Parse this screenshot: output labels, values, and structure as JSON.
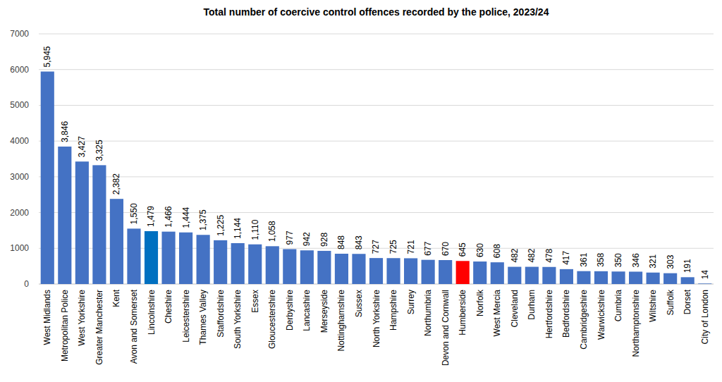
{
  "chart_data": {
    "type": "bar",
    "title": "Total number of coercive control offences recorded by the police, 2023/24",
    "categories": [
      "West Midlands",
      "Metropolitan Police",
      "West Yorkshire",
      "Greater Manchester",
      "Kent",
      "Avon and Somerset",
      "Lincolnshire",
      "Cheshire",
      "Leicestershire",
      "Thames Valley",
      "Staffordshire",
      "South Yorkshire",
      "Essex",
      "Gloucestershire",
      "Derbyshire",
      "Lancashire",
      "Merseyside",
      "Nottinghamshire",
      "Sussex",
      "North Yorkshire",
      "Hampshire",
      "Surrey",
      "Northumbria",
      "Devon and Cornwall",
      "Humberside",
      "Norfolk",
      "West Mercia",
      "Cleveland",
      "Durham",
      "Hertfordshire",
      "Bedfordshire",
      "Cambridgeshire",
      "Warwickshire",
      "Cumbria",
      "Northamptonshire",
      "Wiltshire",
      "Suffolk",
      "Dorset",
      "City of London"
    ],
    "values": [
      5945,
      3846,
      3427,
      3325,
      2382,
      1550,
      1479,
      1466,
      1444,
      1375,
      1225,
      1144,
      1110,
      1058,
      977,
      942,
      928,
      848,
      843,
      727,
      725,
      721,
      677,
      670,
      645,
      630,
      608,
      482,
      482,
      478,
      417,
      361,
      358,
      350,
      346,
      321,
      303,
      191,
      14
    ],
    "value_labels": [
      "5,945",
      "3,846",
      "3,427",
      "3,325",
      "2,382",
      "1,550",
      "1,479",
      "1,466",
      "1,444",
      "1,375",
      "1,225",
      "1,144",
      "1,110",
      "1,058",
      "977",
      "942",
      "928",
      "848",
      "843",
      "727",
      "725",
      "721",
      "677",
      "670",
      "645",
      "630",
      "608",
      "482",
      "482",
      "478",
      "417",
      "361",
      "358",
      "350",
      "346",
      "321",
      "303",
      "191",
      "14"
    ],
    "colors": [
      "#4472c4",
      "#4472c4",
      "#4472c4",
      "#4472c4",
      "#4472c4",
      "#4472c4",
      "#0070c0",
      "#4472c4",
      "#4472c4",
      "#4472c4",
      "#4472c4",
      "#4472c4",
      "#4472c4",
      "#4472c4",
      "#4472c4",
      "#4472c4",
      "#4472c4",
      "#4472c4",
      "#4472c4",
      "#4472c4",
      "#4472c4",
      "#4472c4",
      "#4472c4",
      "#4472c4",
      "#ff0000",
      "#4472c4",
      "#4472c4",
      "#4472c4",
      "#4472c4",
      "#4472c4",
      "#4472c4",
      "#4472c4",
      "#4472c4",
      "#4472c4",
      "#4472c4",
      "#4472c4",
      "#4472c4",
      "#4472c4",
      "#4472c4"
    ],
    "ylim": [
      0,
      7000
    ],
    "yticks": [
      0,
      1000,
      2000,
      3000,
      4000,
      5000,
      6000,
      7000
    ],
    "grid": true,
    "data_labels": true
  }
}
